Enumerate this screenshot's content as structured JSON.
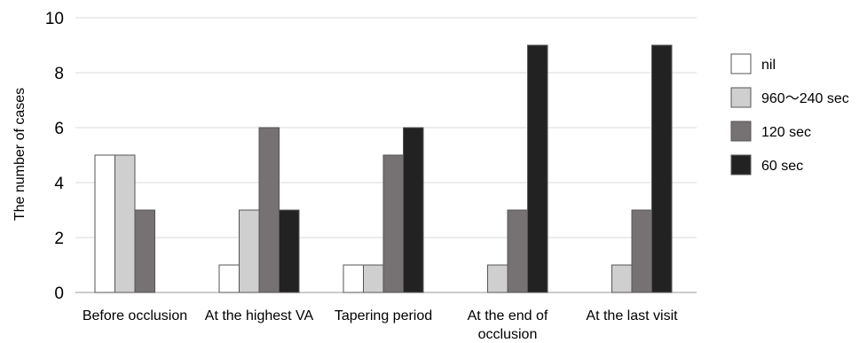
{
  "chart_data": {
    "type": "bar",
    "title": "",
    "xlabel": "",
    "ylabel": "The number of cases",
    "ylim": [
      0,
      10
    ],
    "yticks": [
      0,
      2,
      4,
      6,
      8,
      10
    ],
    "grid": true,
    "legend_position": "right",
    "categories": [
      [
        "Before occlusion"
      ],
      [
        "At the highest VA"
      ],
      [
        "Tapering period"
      ],
      [
        "At the end of",
        "occlusion"
      ],
      [
        "At the last visit"
      ]
    ],
    "series": [
      {
        "name": "nil",
        "color": "#ffffff",
        "values": [
          5,
          1,
          1,
          0,
          0
        ]
      },
      {
        "name": "960～240 sec",
        "color": "#d0cfd0",
        "values": [
          5,
          3,
          1,
          1,
          1
        ]
      },
      {
        "name": "120 sec",
        "color": "#767172",
        "values": [
          3,
          6,
          5,
          3,
          3
        ]
      },
      {
        "name": "60 sec",
        "color": "#222222",
        "values": [
          0,
          3,
          6,
          9,
          9
        ]
      }
    ]
  }
}
